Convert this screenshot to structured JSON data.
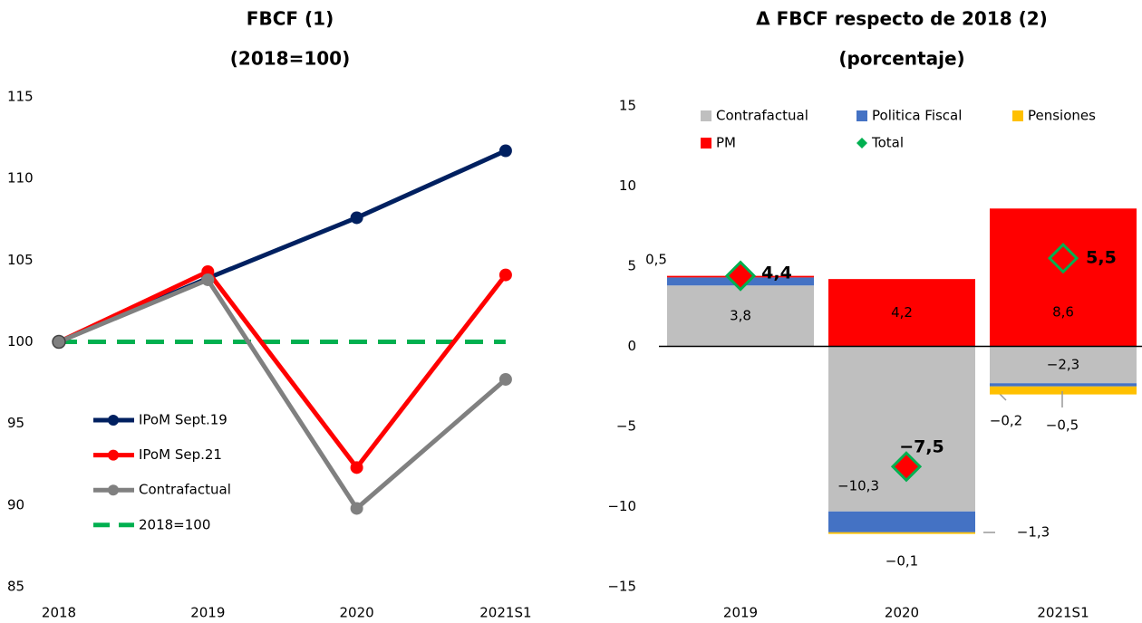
{
  "chart_data": [
    {
      "type": "line",
      "title": [
        "FBCF (1)",
        "(2018=100)"
      ],
      "categories": [
        "2018",
        "2019",
        "2020",
        "2021S1"
      ],
      "series": [
        {
          "name": "IPoM Sept.19",
          "color": "#002060",
          "values": [
            100,
            103.9,
            107.6,
            111.7
          ]
        },
        {
          "name": "IPoM Sep.21",
          "color": "#ff0000",
          "values": [
            100,
            104.3,
            92.3,
            104.1
          ]
        },
        {
          "name": "Contrafactual",
          "color": "#808080",
          "values": [
            100,
            103.8,
            89.8,
            97.7
          ]
        },
        {
          "name": "2018=100",
          "color": "#00b050",
          "dashed": true,
          "values": [
            100,
            100,
            100,
            100
          ]
        }
      ],
      "ylim": [
        85,
        115
      ],
      "yticks": [
        85,
        90,
        95,
        100,
        105,
        110,
        115
      ]
    },
    {
      "type": "stacked_bar",
      "title": [
        "Δ FBCF respecto de 2018 (2)",
        "(porcentaje)"
      ],
      "categories": [
        "2019",
        "2020",
        "2021S1"
      ],
      "series": [
        {
          "name": "Contrafactual",
          "color": "#bfbfbf",
          "values": [
            3.8,
            -10.3,
            -2.3
          ],
          "value_labels": [
            "3,8",
            "−10,3",
            "−2,3"
          ]
        },
        {
          "name": "Politica Fiscal",
          "color": "#4472c4",
          "values": [
            0.5,
            -1.3,
            -0.2
          ],
          "value_labels": [
            "0,5",
            "−1,3",
            "−0,2"
          ]
        },
        {
          "name": "Pensiones",
          "color": "#ffc000",
          "values": [
            0,
            -0.1,
            -0.5
          ],
          "value_labels": [
            null,
            "−0,1",
            "−0,5"
          ]
        },
        {
          "name": "PM",
          "color": "#ff0000",
          "values": [
            0.1,
            4.2,
            8.6
          ],
          "value_labels": [
            null,
            "4,2",
            "8,6"
          ]
        }
      ],
      "total": {
        "name": "Total",
        "color": "#00b050",
        "values": [
          4.4,
          -7.5,
          5.5
        ],
        "value_labels": [
          "4,4",
          "−7,5",
          "5,5"
        ]
      },
      "ylim": [
        -15,
        15
      ],
      "yticks": [
        {
          "value": -15,
          "label": "−15"
        },
        {
          "value": -10,
          "label": "−10"
        },
        {
          "value": -5,
          "label": "−5"
        },
        0,
        5,
        10,
        15
      ]
    }
  ]
}
